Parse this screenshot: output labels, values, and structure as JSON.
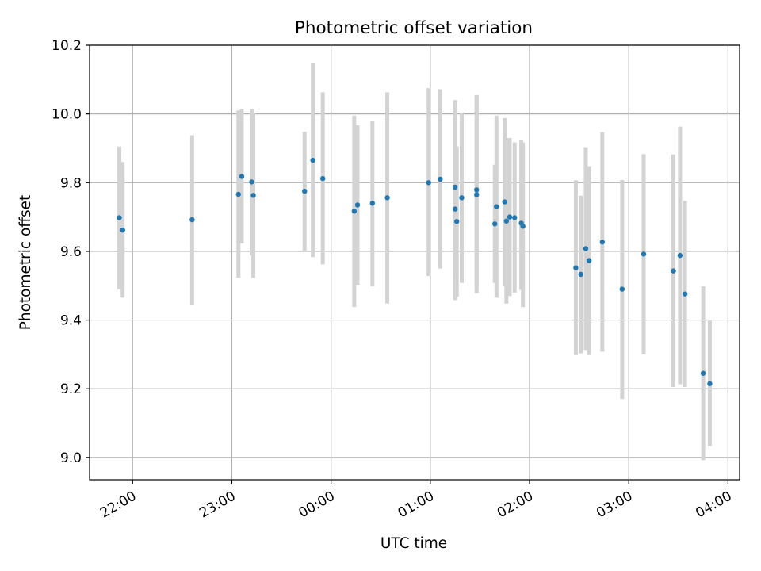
{
  "chart_data": {
    "type": "scatter",
    "title": "Photometric offset variation",
    "xlabel": "UTC time",
    "ylabel": "Photometric offset",
    "x_ticks": [
      "22:00",
      "23:00",
      "00:00",
      "01:00",
      "02:00",
      "03:00",
      "04:00"
    ],
    "y_ticks": [
      "9.0",
      "9.2",
      "9.4",
      "9.6",
      "9.8",
      "10.0",
      "10.2"
    ],
    "x_range": [
      "21:34",
      "04:07"
    ],
    "ylim": [
      8.935,
      10.2
    ],
    "grid": true,
    "colors": {
      "point": "#1f77b4",
      "errorbar": "#d3d3d3",
      "grid": "#b0b0b0"
    },
    "points": [
      {
        "x": "21:52",
        "y": 9.698,
        "err_low": 9.49,
        "err_high": 9.905
      },
      {
        "x": "21:54",
        "y": 9.662,
        "err_low": 9.465,
        "err_high": 9.86
      },
      {
        "x": "22:36",
        "y": 9.692,
        "err_low": 9.445,
        "err_high": 9.938
      },
      {
        "x": "23:04",
        "y": 9.766,
        "err_low": 9.523,
        "err_high": 10.01
      },
      {
        "x": "23:06",
        "y": 9.818,
        "err_low": 9.623,
        "err_high": 10.015
      },
      {
        "x": "23:12",
        "y": 9.802,
        "err_low": 9.588,
        "err_high": 10.015
      },
      {
        "x": "23:13",
        "y": 9.763,
        "err_low": 9.523,
        "err_high": 10.003
      },
      {
        "x": "23:44",
        "y": 9.775,
        "err_low": 9.6,
        "err_high": 9.948
      },
      {
        "x": "23:49",
        "y": 9.865,
        "err_low": 9.583,
        "err_high": 10.147
      },
      {
        "x": "23:55",
        "y": 9.812,
        "err_low": 9.562,
        "err_high": 10.063
      },
      {
        "x": "00:14",
        "y": 9.717,
        "err_low": 9.438,
        "err_high": 9.995
      },
      {
        "x": "00:16",
        "y": 9.735,
        "err_low": 9.503,
        "err_high": 9.967
      },
      {
        "x": "00:25",
        "y": 9.74,
        "err_low": 9.498,
        "err_high": 9.98
      },
      {
        "x": "00:34",
        "y": 9.756,
        "err_low": 9.448,
        "err_high": 10.063
      },
      {
        "x": "00:59",
        "y": 9.8,
        "err_low": 9.528,
        "err_high": 10.075
      },
      {
        "x": "01:06",
        "y": 9.81,
        "err_low": 9.55,
        "err_high": 10.072
      },
      {
        "x": "01:15",
        "y": 9.723,
        "err_low": 9.458,
        "err_high": 9.988
      },
      {
        "x": "01:15",
        "y": 9.787,
        "err_low": 9.533,
        "err_high": 10.04
      },
      {
        "x": "01:16",
        "y": 9.687,
        "err_low": 9.468,
        "err_high": 9.905
      },
      {
        "x": "01:19",
        "y": 9.756,
        "err_low": 9.508,
        "err_high": 10.003
      },
      {
        "x": "01:28",
        "y": 9.765,
        "err_low": 9.478,
        "err_high": 10.055
      },
      {
        "x": "01:28",
        "y": 9.779,
        "err_low": 9.5,
        "err_high": 10.055
      },
      {
        "x": "01:39",
        "y": 9.68,
        "err_low": 9.508,
        "err_high": 9.852
      },
      {
        "x": "01:40",
        "y": 9.73,
        "err_low": 9.465,
        "err_high": 9.995
      },
      {
        "x": "01:45",
        "y": 9.744,
        "err_low": 9.5,
        "err_high": 9.988
      },
      {
        "x": "01:46",
        "y": 9.688,
        "err_low": 9.448,
        "err_high": 9.93
      },
      {
        "x": "01:48",
        "y": 9.7,
        "err_low": 9.47,
        "err_high": 9.93
      },
      {
        "x": "01:51",
        "y": 9.698,
        "err_low": 9.48,
        "err_high": 9.917
      },
      {
        "x": "01:55",
        "y": 9.682,
        "err_low": 9.488,
        "err_high": 9.925
      },
      {
        "x": "01:56",
        "y": 9.673,
        "err_low": 9.438,
        "err_high": 9.917
      },
      {
        "x": "02:28",
        "y": 9.552,
        "err_low": 9.298,
        "err_high": 9.807
      },
      {
        "x": "02:31",
        "y": 9.533,
        "err_low": 9.303,
        "err_high": 9.762
      },
      {
        "x": "02:34",
        "y": 9.608,
        "err_low": 9.313,
        "err_high": 9.903
      },
      {
        "x": "02:36",
        "y": 9.573,
        "err_low": 9.298,
        "err_high": 9.848
      },
      {
        "x": "02:44",
        "y": 9.627,
        "err_low": 9.308,
        "err_high": 9.947
      },
      {
        "x": "02:56",
        "y": 9.49,
        "err_low": 9.17,
        "err_high": 9.808
      },
      {
        "x": "03:09",
        "y": 9.592,
        "err_low": 9.3,
        "err_high": 9.883
      },
      {
        "x": "03:27",
        "y": 9.543,
        "err_low": 9.205,
        "err_high": 9.882
      },
      {
        "x": "03:31",
        "y": 9.588,
        "err_low": 9.213,
        "err_high": 9.963
      },
      {
        "x": "03:34",
        "y": 9.476,
        "err_low": 9.205,
        "err_high": 9.747
      },
      {
        "x": "03:45",
        "y": 9.245,
        "err_low": 8.992,
        "err_high": 9.498
      },
      {
        "x": "03:49",
        "y": 9.215,
        "err_low": 9.033,
        "err_high": 9.398
      }
    ]
  }
}
